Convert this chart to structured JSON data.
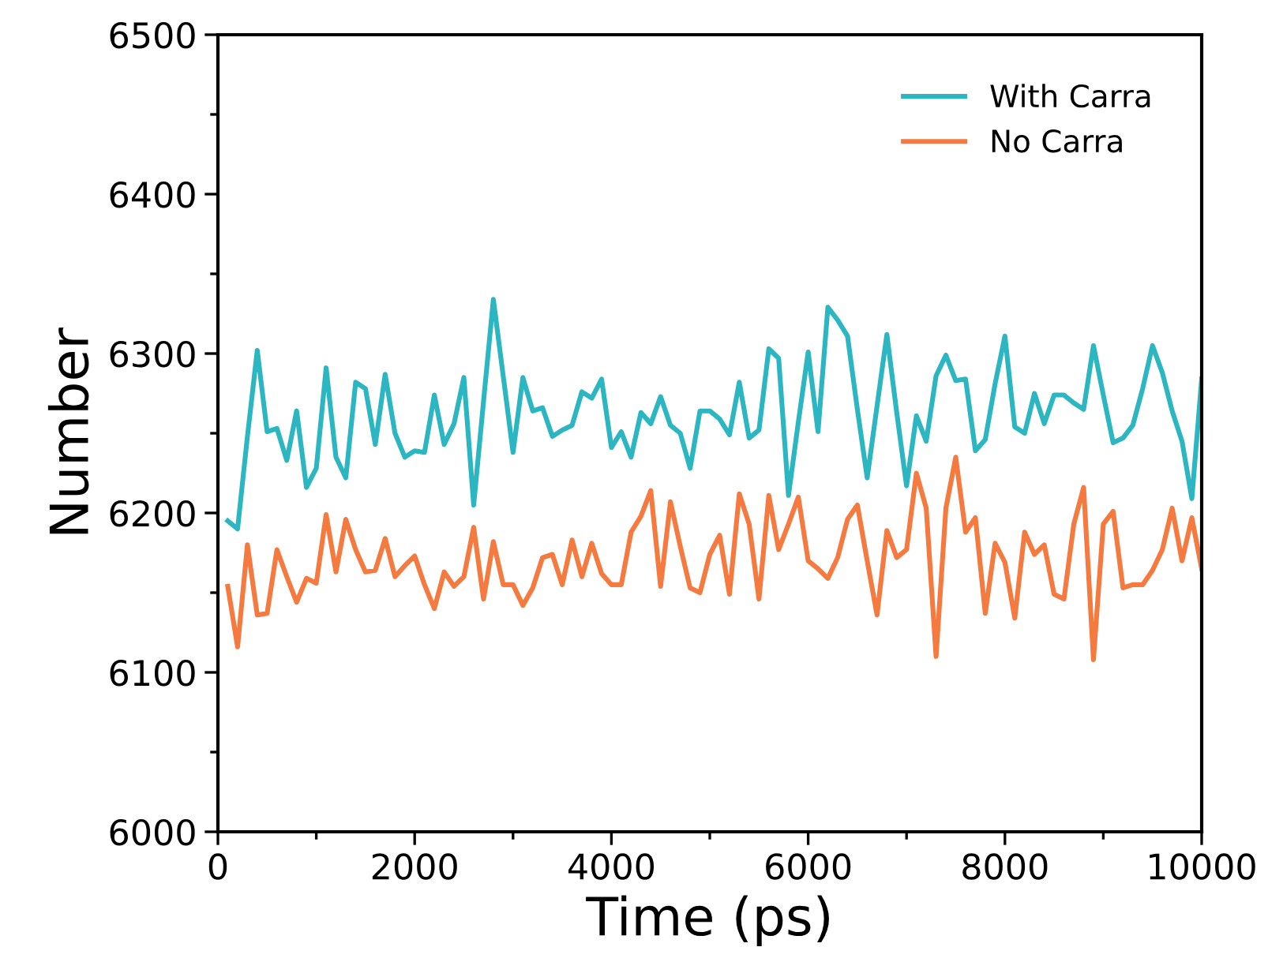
{
  "chart_data": {
    "type": "line",
    "xlabel": "Time (ps)",
    "ylabel": "Number",
    "x": [
      100,
      200,
      300,
      400,
      500,
      600,
      700,
      800,
      900,
      1000,
      1100,
      1200,
      1300,
      1400,
      1500,
      1600,
      1700,
      1800,
      1900,
      2000,
      2100,
      2200,
      2300,
      2400,
      2500,
      2600,
      2700,
      2800,
      2900,
      3000,
      3100,
      3200,
      3300,
      3400,
      3500,
      3600,
      3700,
      3800,
      3900,
      4000,
      4100,
      4200,
      4300,
      4400,
      4500,
      4600,
      4700,
      4800,
      4900,
      5000,
      5100,
      5200,
      5300,
      5400,
      5500,
      5600,
      5700,
      5800,
      5900,
      6000,
      6100,
      6200,
      6300,
      6400,
      6500,
      6600,
      6700,
      6800,
      6900,
      7000,
      7100,
      7200,
      7300,
      7400,
      7500,
      7600,
      7700,
      7800,
      7900,
      8000,
      8100,
      8200,
      8300,
      8400,
      8500,
      8600,
      8700,
      8800,
      8900,
      9000,
      9100,
      9200,
      9300,
      9400,
      9500,
      9600,
      9700,
      9800,
      9900,
      10000
    ],
    "series": [
      {
        "name": "With Carra",
        "color": "#2bb6c1",
        "values": [
          6195,
          6190,
          6248,
          6302,
          6251,
          6253,
          6233,
          6264,
          6216,
          6228,
          6291,
          6235,
          6222,
          6282,
          6278,
          6243,
          6287,
          6250,
          6235,
          6239,
          6238,
          6274,
          6243,
          6256,
          6285,
          6205,
          6270,
          6334,
          6286,
          6238,
          6285,
          6264,
          6266,
          6248,
          6252,
          6255,
          6276,
          6272,
          6284,
          6241,
          6251,
          6235,
          6263,
          6256,
          6273,
          6255,
          6250,
          6228,
          6264,
          6264,
          6259,
          6249,
          6282,
          6247,
          6252,
          6303,
          6297,
          6211,
          6257,
          6301,
          6251,
          6329,
          6321,
          6311,
          6265,
          6222,
          6267,
          6312,
          6263,
          6217,
          6261,
          6245,
          6286,
          6299,
          6283,
          6284,
          6239,
          6246,
          6281,
          6311,
          6254,
          6250,
          6275,
          6256,
          6274,
          6274,
          6269,
          6265,
          6305,
          6274,
          6244,
          6247,
          6255,
          6278,
          6305,
          6288,
          6264,
          6245,
          6209,
          6284
        ]
      },
      {
        "name": "No Carra",
        "color": "#f47a3f",
        "values": [
          6154,
          6116,
          6180,
          6136,
          6137,
          6177,
          6160,
          6144,
          6159,
          6156,
          6199,
          6163,
          6196,
          6177,
          6163,
          6164,
          6184,
          6160,
          6167,
          6173,
          6155,
          6140,
          6163,
          6154,
          6160,
          6191,
          6146,
          6182,
          6155,
          6155,
          6142,
          6153,
          6172,
          6174,
          6155,
          6183,
          6160,
          6181,
          6162,
          6155,
          6155,
          6188,
          6198,
          6214,
          6154,
          6207,
          6179,
          6153,
          6150,
          6174,
          6186,
          6149,
          6212,
          6193,
          6146,
          6211,
          6177,
          6193,
          6210,
          6170,
          6165,
          6159,
          6172,
          6196,
          6205,
          6170,
          6136,
          6189,
          6172,
          6177,
          6225,
          6203,
          6110,
          6203,
          6235,
          6188,
          6197,
          6137,
          6181,
          6169,
          6134,
          6188,
          6174,
          6180,
          6149,
          6146,
          6193,
          6216,
          6108,
          6193,
          6201,
          6153,
          6155,
          6155,
          6164,
          6177,
          6203,
          6170,
          6197,
          6165
        ]
      }
    ],
    "xlim": [
      0,
      10000
    ],
    "xticks": [
      0,
      2000,
      4000,
      6000,
      8000,
      10000
    ],
    "ylim": [
      6000,
      6500
    ],
    "yticks": [
      6000,
      6100,
      6200,
      6300,
      6400,
      6500
    ],
    "legend": "top right",
    "grid": false,
    "marker": "none",
    "line_style": "solid"
  }
}
